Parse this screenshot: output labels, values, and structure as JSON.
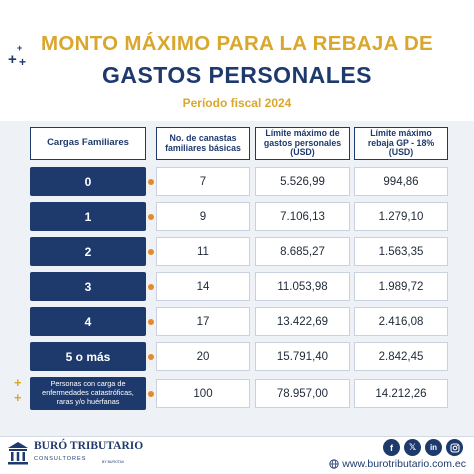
{
  "header": {
    "title_line1": "MONTO MÁXIMO PARA LA REBAJA DE",
    "title_line2": "GASTOS PERSONALES",
    "period": "Período fiscal 2024"
  },
  "table": {
    "columns": [
      "Cargas Familiares",
      "No. de canastas familiares básicas",
      "Límite máximo de gastos personales (USD)",
      "Límite máximo rebaja GP - 18% (USD)"
    ],
    "rows": [
      {
        "cargas": "0",
        "canastas": "7",
        "limite": "5.526,99",
        "rebaja": "994,86"
      },
      {
        "cargas": "1",
        "canastas": "9",
        "limite": "7.106,13",
        "rebaja": "1.279,10"
      },
      {
        "cargas": "2",
        "canastas": "11",
        "limite": "8.685,27",
        "rebaja": "1.563,35"
      },
      {
        "cargas": "3",
        "canastas": "14",
        "limite": "11.053,98",
        "rebaja": "1.989,72"
      },
      {
        "cargas": "4",
        "canastas": "17",
        "limite": "13.422,69",
        "rebaja": "2.416,08"
      },
      {
        "cargas": "5 o más",
        "canastas": "20",
        "limite": "15.791,40",
        "rebaja": "2.842,45"
      },
      {
        "cargas": "Personas con carga de enfermedades catastróficas, raras y/o huérfanas",
        "canastas": "100",
        "limite": "78.957,00",
        "rebaja": "14.212,26"
      }
    ]
  },
  "footer": {
    "brand_name": "BURÓ TRIBUTARIO",
    "brand_sub": "CONSULTORES",
    "brand_mini": "BY BUROTAX",
    "website": "www.burotributario.com.ec",
    "social_icons": [
      "facebook-icon",
      "x-icon",
      "linkedin-icon",
      "instagram-icon"
    ]
  },
  "colors": {
    "navy": "#1e3a6d",
    "gold": "#d9a62e",
    "orange": "#e48a2a",
    "band": "#eef1f6"
  }
}
